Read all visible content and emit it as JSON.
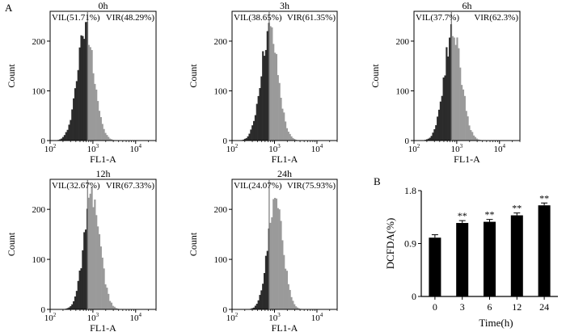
{
  "panel_labels": {
    "a": "A",
    "b": "B"
  },
  "chart_data": [
    {
      "type": "area",
      "title": "0h",
      "xlabel": "FL1-A",
      "ylabel": "Count",
      "x_scale": "log",
      "xlim": [
        100,
        30000
      ],
      "ylim": [
        0,
        260
      ],
      "x_ticks": [
        {
          "value": 100,
          "base": "10",
          "exp": "2"
        },
        {
          "value": 1000,
          "base": "10",
          "exp": "3"
        },
        {
          "value": 10000,
          "base": "10",
          "exp": "4"
        }
      ],
      "y_ticks": [
        0,
        100,
        200
      ],
      "gate_x": 750,
      "peak_x": 680,
      "peak_y": 225,
      "log_sigma": 0.2,
      "left_label": "VIL(51.71%)",
      "right_label": "VIR(48.29%)",
      "colors": {
        "left": "#2b2b2b",
        "right": "#9a9a9a"
      }
    },
    {
      "type": "area",
      "title": "3h",
      "xlabel": "FL1-A",
      "ylabel": "Count",
      "x_scale": "log",
      "xlim": [
        100,
        30000
      ],
      "ylim": [
        0,
        260
      ],
      "x_ticks": [
        {
          "value": 100,
          "base": "10",
          "exp": "2"
        },
        {
          "value": 1000,
          "base": "10",
          "exp": "3"
        },
        {
          "value": 10000,
          "base": "10",
          "exp": "4"
        }
      ],
      "y_ticks": [
        0,
        100,
        200
      ],
      "gate_x": 750,
      "peak_x": 760,
      "peak_y": 220,
      "log_sigma": 0.2,
      "left_label": "VIL(38.65%)",
      "right_label": "VIR(61.35%)",
      "colors": {
        "left": "#2b2b2b",
        "right": "#9a9a9a"
      }
    },
    {
      "type": "area",
      "title": "6h",
      "xlabel": "FL1-A",
      "ylabel": "Count",
      "x_scale": "log",
      "xlim": [
        100,
        30000
      ],
      "ylim": [
        0,
        260
      ],
      "x_ticks": [
        {
          "value": 100,
          "base": "10",
          "exp": "2"
        },
        {
          "value": 1000,
          "base": "10",
          "exp": "3"
        },
        {
          "value": 10000,
          "base": "10",
          "exp": "4"
        }
      ],
      "y_ticks": [
        0,
        100,
        200
      ],
      "gate_x": 750,
      "peak_x": 800,
      "peak_y": 220,
      "log_sigma": 0.2,
      "left_label": "VIL(37.7%)",
      "right_label": "VIR(62.3%)",
      "colors": {
        "left": "#2b2b2b",
        "right": "#9a9a9a"
      }
    },
    {
      "type": "area",
      "title": "12h",
      "xlabel": "FL1-A",
      "ylabel": "Count",
      "x_scale": "log",
      "xlim": [
        100,
        30000
      ],
      "ylim": [
        0,
        260
      ],
      "x_ticks": [
        {
          "value": 100,
          "base": "10",
          "exp": "2"
        },
        {
          "value": 1000,
          "base": "10",
          "exp": "3"
        },
        {
          "value": 10000,
          "base": "10",
          "exp": "4"
        }
      ],
      "y_ticks": [
        0,
        100,
        200
      ],
      "gate_x": 750,
      "peak_x": 950,
      "peak_y": 220,
      "log_sigma": 0.19,
      "left_label": "VIL(32.67%)",
      "right_label": "VIR(67.33%)",
      "colors": {
        "left": "#2b2b2b",
        "right": "#9a9a9a"
      }
    },
    {
      "type": "area",
      "title": "24h",
      "xlabel": "FL1-A",
      "ylabel": "Count",
      "x_scale": "log",
      "xlim": [
        100,
        30000
      ],
      "ylim": [
        0,
        260
      ],
      "x_ticks": [
        {
          "value": 100,
          "base": "10",
          "exp": "2"
        },
        {
          "value": 1000,
          "base": "10",
          "exp": "3"
        },
        {
          "value": 10000,
          "base": "10",
          "exp": "4"
        }
      ],
      "y_ticks": [
        0,
        100,
        200
      ],
      "gate_x": 750,
      "peak_x": 1050,
      "peak_y": 215,
      "log_sigma": 0.18,
      "left_label": "VIL(24.07%)",
      "right_label": "VIR(75.93%)",
      "colors": {
        "left": "#2b2b2b",
        "right": "#9a9a9a"
      }
    },
    {
      "type": "bar",
      "title": "",
      "xlabel": "Time(h)",
      "ylabel": "DCFDA(%)",
      "categories": [
        "0",
        "3",
        "6",
        "12",
        "24"
      ],
      "values": [
        1.0,
        1.25,
        1.27,
        1.38,
        1.55
      ],
      "errors": [
        0.05,
        0.04,
        0.04,
        0.04,
        0.04
      ],
      "significance": [
        "",
        "**",
        "**",
        "**",
        "**"
      ],
      "ylim": [
        0,
        1.8
      ],
      "y_ticks": [
        "0",
        "0.9",
        "1.8"
      ],
      "colors": {
        "bar": "#000000"
      }
    }
  ]
}
